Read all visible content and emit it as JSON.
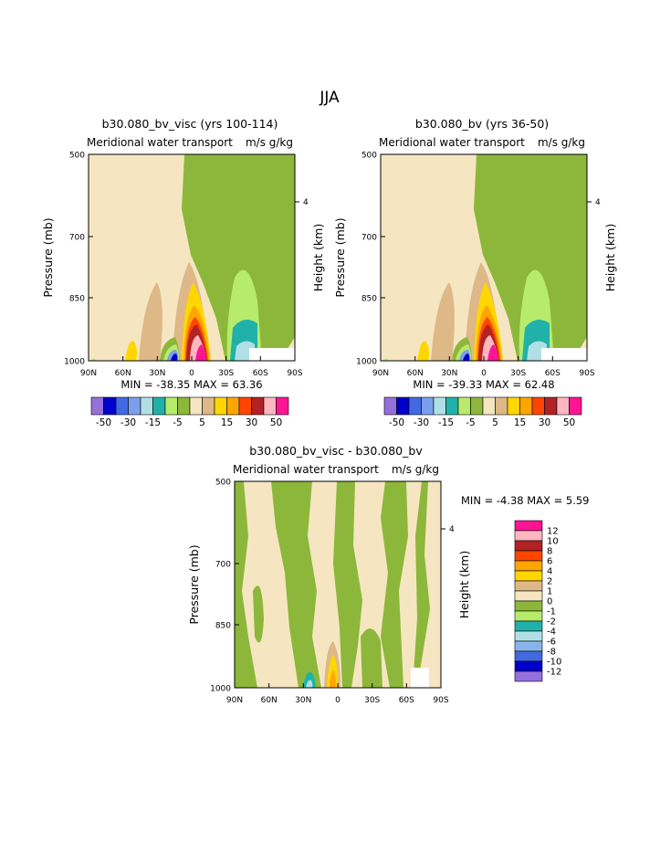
{
  "suptitle": "JJA",
  "colors": {
    "main": [
      "#9370DB",
      "#0000CD",
      "#4169E1",
      "#7B9FEC",
      "#B0E0E6",
      "#20B2AA",
      "#B6EB6B",
      "#8DB73A",
      "#F5E6C1",
      "#DEB887",
      "#FFD700",
      "#FFA500",
      "#FF4500",
      "#B22222",
      "#FFB6C1",
      "#FF1493"
    ],
    "diff": [
      "#9370DB",
      "#0000CD",
      "#4169E1",
      "#87B5EB",
      "#B0E0E6",
      "#20B2AA",
      "#B6EB6B",
      "#8DB73A",
      "#F5E6C1",
      "#DEB887",
      "#FFD700",
      "#FFA500",
      "#FF4500",
      "#B22222",
      "#FFB6C1",
      "#FF1493"
    ]
  },
  "panels": {
    "p1": {
      "title": "b30.080_bv_visc (yrs 100-114)",
      "subtitle": "Meridional water transport",
      "units": "m/s g/kg",
      "minmax": "MIN = -38.35   MAX =  63.36"
    },
    "p2": {
      "title": "b30.080_bv (yrs 36-50)",
      "subtitle": "Meridional water transport",
      "units": "m/s g/kg",
      "minmax": "MIN = -39.33   MAX =  62.48"
    },
    "p3": {
      "title": "b30.080_bv_visc - b30.080_bv",
      "subtitle": "Meridional water transport",
      "units": "m/s g/kg",
      "minmax": "MIN =  -4.38   MAX =   5.59"
    }
  },
  "axes": {
    "ylabel": "Pressure (mb)",
    "ylabel_right": "Height (km)",
    "pressure_ticks": [
      "500",
      "700",
      "850",
      "1000"
    ],
    "height_ticks": [
      "4"
    ],
    "lat_ticks": [
      "90N",
      "60N",
      "30N",
      "0",
      "30S",
      "60S",
      "90S"
    ]
  },
  "colorbars": {
    "main": {
      "labels": [
        "-50",
        "-30",
        "-15",
        "-5",
        "5",
        "15",
        "30",
        "50"
      ]
    },
    "diff": {
      "labels": [
        "12",
        "10",
        "8",
        "6",
        "4",
        "2",
        "1",
        "0",
        "-1",
        "-2",
        "-4",
        "-6",
        "-8",
        "-10",
        "-12"
      ]
    }
  },
  "chart_data": [
    {
      "type": "heatmap",
      "title": "b30.080_bv_visc (yrs 100-114)",
      "subtitle": "Meridional water transport",
      "units": "m/s g/kg",
      "xlabel": "",
      "ylabel": "Pressure (mb)",
      "ylabel_right": "Height (km)",
      "x_ticks": [
        "90N",
        "60N",
        "30N",
        "0",
        "30S",
        "60S",
        "90S"
      ],
      "y_ticks": [
        500,
        700,
        850,
        1000
      ],
      "contour_levels": [
        -50,
        -40,
        -30,
        -20,
        -15,
        -10,
        -5,
        0,
        5,
        10,
        15,
        20,
        30,
        40,
        50
      ],
      "min": -38.35,
      "max": 63.36
    },
    {
      "type": "heatmap",
      "title": "b30.080_bv (yrs 36-50)",
      "subtitle": "Meridional water transport",
      "units": "m/s g/kg",
      "xlabel": "",
      "ylabel": "Pressure (mb)",
      "ylabel_right": "Height (km)",
      "x_ticks": [
        "90N",
        "60N",
        "30N",
        "0",
        "30S",
        "60S",
        "90S"
      ],
      "y_ticks": [
        500,
        700,
        850,
        1000
      ],
      "contour_levels": [
        -50,
        -40,
        -30,
        -20,
        -15,
        -10,
        -5,
        0,
        5,
        10,
        15,
        20,
        30,
        40,
        50
      ],
      "min": -39.33,
      "max": 62.48
    },
    {
      "type": "heatmap",
      "title": "b30.080_bv_visc - b30.080_bv",
      "subtitle": "Meridional water transport",
      "units": "m/s g/kg",
      "xlabel": "",
      "ylabel": "Pressure (mb)",
      "ylabel_right": "Height (km)",
      "x_ticks": [
        "90N",
        "60N",
        "30N",
        "0",
        "30S",
        "60S",
        "90S"
      ],
      "y_ticks": [
        500,
        700,
        850,
        1000
      ],
      "contour_levels": [
        -12,
        -10,
        -8,
        -6,
        -4,
        -2,
        -1,
        0,
        1,
        2,
        4,
        6,
        8,
        10,
        12
      ],
      "min": -4.38,
      "max": 5.59
    }
  ]
}
